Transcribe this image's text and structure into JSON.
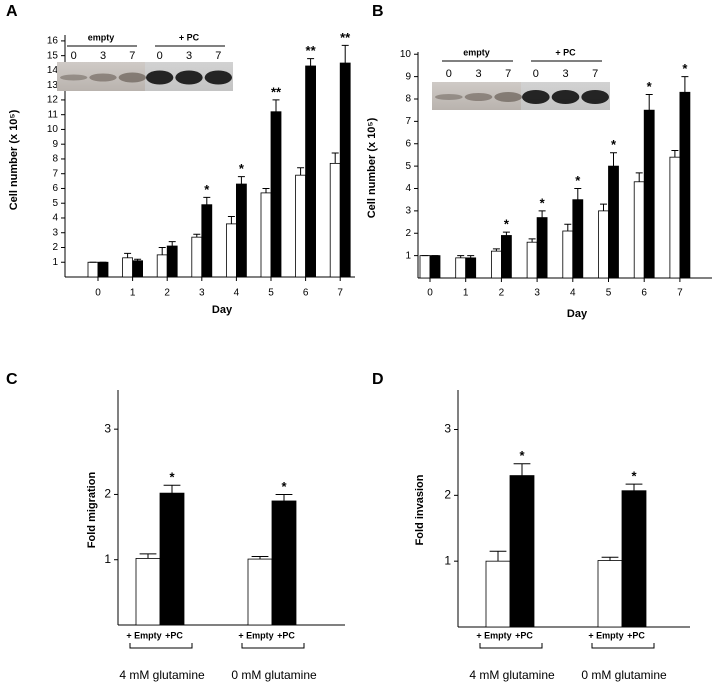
{
  "chart_data": [
    {
      "type": "bar",
      "panel": "A",
      "x_label": "Day",
      "y_label": "Cell number (x 10⁵)",
      "categories": [
        "0",
        "1",
        "2",
        "3",
        "4",
        "5",
        "6",
        "7"
      ],
      "series": [
        {
          "color": "#ffffff",
          "values": [
            1,
            1.3,
            1.5,
            2.7,
            3.6,
            5.7,
            6.9,
            7.7
          ],
          "errors": [
            0,
            0.3,
            0.5,
            0.2,
            0.5,
            0.3,
            0.5,
            0.7
          ]
        },
        {
          "color": "#000000",
          "values": [
            1,
            1.1,
            2.1,
            4.9,
            6.3,
            11.2,
            14.3,
            14.5
          ],
          "errors": [
            0,
            0.1,
            0.3,
            0.5,
            0.5,
            0.8,
            0.5,
            1.2
          ],
          "annotations": [
            null,
            null,
            null,
            "*",
            "*",
            "**",
            "**",
            "**"
          ]
        }
      ],
      "ylim": [
        0,
        16.4
      ],
      "yticks": [
        1,
        2,
        3,
        4,
        5,
        6,
        7,
        8,
        9,
        10,
        11,
        12,
        13,
        14,
        15,
        16
      ],
      "inset": {
        "groups": [
          "empty",
          "+ PC"
        ],
        "lanes": [
          "0",
          "3",
          "7",
          "0",
          "3",
          "7"
        ]
      }
    },
    {
      "type": "bar",
      "panel": "B",
      "x_label": "Day",
      "y_label": "Cell number (x 10⁵)",
      "categories": [
        "0",
        "1",
        "2",
        "3",
        "4",
        "5",
        "6",
        "7"
      ],
      "series": [
        {
          "color": "#ffffff",
          "values": [
            1,
            0.9,
            1.2,
            1.6,
            2.1,
            3.0,
            4.3,
            5.4
          ],
          "errors": [
            0,
            0.1,
            0.1,
            0.15,
            0.3,
            0.3,
            0.4,
            0.3
          ]
        },
        {
          "color": "#000000",
          "values": [
            1,
            0.9,
            1.9,
            2.7,
            3.5,
            5.0,
            7.5,
            8.3
          ],
          "errors": [
            0,
            0.1,
            0.15,
            0.3,
            0.5,
            0.6,
            0.7,
            0.7
          ],
          "annotations": [
            null,
            null,
            "*",
            "*",
            "*",
            "*",
            "*",
            "*"
          ]
        }
      ],
      "ylim": [
        0,
        10.1
      ],
      "yticks": [
        1,
        2,
        3,
        4,
        5,
        6,
        7,
        8,
        9,
        10
      ],
      "inset": {
        "groups": [
          "empty",
          "+ PC"
        ],
        "lanes": [
          "0",
          "3",
          "7",
          "0",
          "3",
          "7"
        ]
      }
    },
    {
      "type": "bar",
      "panel": "C",
      "y_label": "Fold migration",
      "categories": [
        "4 mM glutamine",
        "0 mM glutamine"
      ],
      "series": [
        {
          "name": "+ Empty",
          "color": "#ffffff",
          "values": [
            1.02,
            1.01
          ],
          "errors": [
            0.07,
            0.04
          ]
        },
        {
          "name": "+PC",
          "color": "#000000",
          "values": [
            2.02,
            1.9
          ],
          "errors": [
            0.12,
            0.1
          ],
          "annotations": [
            "*",
            "*"
          ]
        }
      ],
      "ylim": [
        0,
        3.6
      ],
      "yticks": [
        1,
        2,
        3
      ]
    },
    {
      "type": "bar",
      "panel": "D",
      "y_label": "Fold invasion",
      "categories": [
        "4 mM glutamine",
        "0 mM glutamine"
      ],
      "series": [
        {
          "name": "+ Empty",
          "color": "#ffffff",
          "values": [
            1.0,
            1.01
          ],
          "errors": [
            0.15,
            0.05
          ]
        },
        {
          "name": "+PC",
          "color": "#000000",
          "values": [
            2.3,
            2.07
          ],
          "errors": [
            0.18,
            0.1
          ],
          "annotations": [
            "*",
            "*"
          ]
        }
      ],
      "ylim": [
        0,
        3.6
      ],
      "yticks": [
        1,
        2,
        3
      ]
    }
  ]
}
